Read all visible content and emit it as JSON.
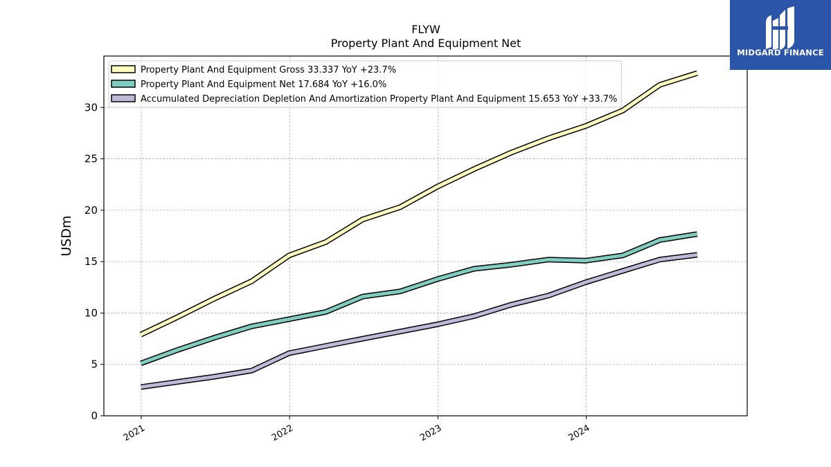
{
  "chart_data": {
    "type": "line",
    "title": "FLYW",
    "subtitle": "Property Plant And Equipment Net",
    "ylabel": "USDm",
    "xlabel": "",
    "ylim": [
      0,
      35
    ],
    "xlim": [
      "2020-10-01",
      "2025-01-31"
    ],
    "yticks": [
      0,
      5,
      10,
      15,
      20,
      25,
      30
    ],
    "xticks": [
      "2021",
      "2022",
      "2023",
      "2024"
    ],
    "grid": true,
    "legend_position": "top-left",
    "series": [
      {
        "name": "Property Plant And Equipment Gross  33.337 YoY +23.7%",
        "color": "#ffffbf",
        "x": [
          "2020-12-31",
          "2021-03-31",
          "2021-06-30",
          "2021-09-30",
          "2021-12-31",
          "2022-03-31",
          "2022-06-30",
          "2022-09-30",
          "2022-12-31",
          "2023-03-31",
          "2023-06-30",
          "2023-09-30",
          "2023-12-31",
          "2024-03-31",
          "2024-06-30",
          "2024-09-30"
        ],
        "values": [
          7.9,
          9.6,
          11.4,
          13.1,
          15.6,
          16.9,
          19.1,
          20.3,
          22.3,
          24.0,
          25.6,
          27.0,
          28.2,
          29.7,
          32.2,
          33.337
        ]
      },
      {
        "name": "Property Plant And Equipment Net  17.684 YoY +16.0%",
        "color": "#80cdc1",
        "x": [
          "2020-12-31",
          "2021-03-31",
          "2021-06-30",
          "2021-09-30",
          "2021-12-31",
          "2022-03-31",
          "2022-06-30",
          "2022-09-30",
          "2022-12-31",
          "2023-03-31",
          "2023-06-30",
          "2023-09-30",
          "2023-12-31",
          "2024-03-31",
          "2024-06-30",
          "2024-09-30"
        ],
        "values": [
          5.1,
          6.4,
          7.6,
          8.7,
          9.4,
          10.1,
          11.6,
          12.1,
          13.3,
          14.3,
          14.7,
          15.2,
          15.1,
          15.6,
          17.1,
          17.684
        ]
      },
      {
        "name": "Accumulated Depreciation Depletion And Amortization Property Plant And Equipment  15.653 YoY +33.7%",
        "color": "#bebada",
        "x": [
          "2020-12-31",
          "2021-03-31",
          "2021-06-30",
          "2021-09-30",
          "2021-12-31",
          "2022-03-31",
          "2022-06-30",
          "2022-09-30",
          "2022-12-31",
          "2023-03-31",
          "2023-06-30",
          "2023-09-30",
          "2023-12-31",
          "2024-03-31",
          "2024-06-30",
          "2024-09-30"
        ],
        "values": [
          2.8,
          3.3,
          3.8,
          4.4,
          6.1,
          6.8,
          7.5,
          8.2,
          8.9,
          9.7,
          10.8,
          11.7,
          13.0,
          14.1,
          15.2,
          15.653
        ]
      }
    ]
  },
  "logo": {
    "text": "MIDGARD FINANCE",
    "background": "#2a55a8"
  }
}
